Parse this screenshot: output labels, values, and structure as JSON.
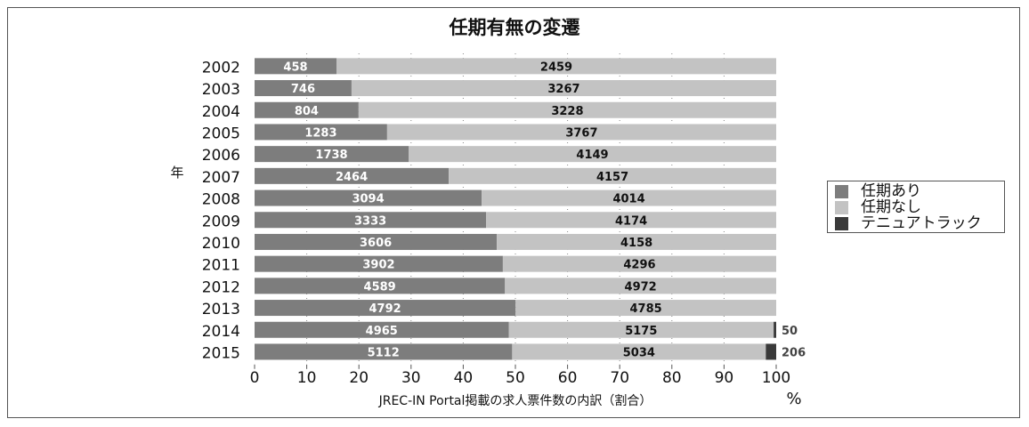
{
  "chart_data": {
    "type": "bar",
    "orientation": "horizontal",
    "stacked": "percent",
    "title": "任期有無の変遷",
    "ylabel": "年",
    "xlabel": "JREC-IN Portal掲載の求人票件数の内訳（割合）",
    "x_unit": "%",
    "xlim": [
      0,
      100
    ],
    "x_ticks": [
      "0",
      "10",
      "20",
      "30",
      "40",
      "50",
      "60",
      "70",
      "80",
      "90",
      "100"
    ],
    "categories": [
      "2002",
      "2003",
      "2004",
      "2005",
      "2006",
      "2007",
      "2008",
      "2009",
      "2010",
      "2011",
      "2012",
      "2013",
      "2014",
      "2015"
    ],
    "series": [
      {
        "name": "任期あり",
        "color": "#7d7d7d",
        "label_color": "#ffffff",
        "values": [
          458,
          746,
          804,
          1283,
          1738,
          2464,
          3094,
          3333,
          3606,
          3902,
          4589,
          4792,
          4965,
          5112
        ]
      },
      {
        "name": "任期なし",
        "color": "#c3c3c3",
        "label_color": "#111111",
        "values": [
          2459,
          3267,
          3228,
          3767,
          4149,
          4157,
          4014,
          4174,
          4158,
          4296,
          4972,
          4785,
          5175,
          5034
        ]
      },
      {
        "name": "テニュアトラック",
        "color": "#3a3a3a",
        "label_color": "#444444",
        "values": [
          null,
          null,
          null,
          null,
          null,
          null,
          null,
          null,
          null,
          null,
          null,
          null,
          50,
          206
        ]
      }
    ],
    "grid": true,
    "legend_position": "right"
  }
}
